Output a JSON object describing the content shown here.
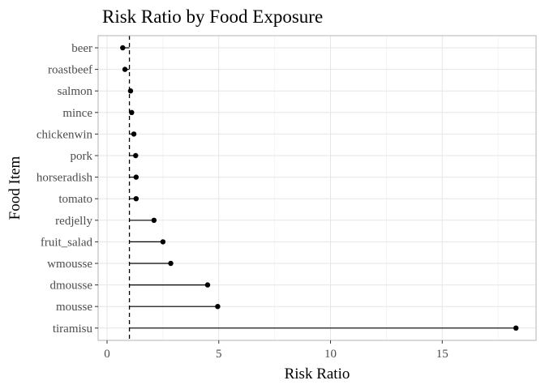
{
  "chart_data": {
    "type": "lollipop",
    "title": "Risk Ratio by Food Exposure",
    "xlabel": "Risk Ratio",
    "ylabel": "Food Item",
    "xlim": [
      -0.4,
      19.2
    ],
    "xticks": [
      0,
      5,
      10,
      15
    ],
    "reference_line": 1,
    "grid": true,
    "categories": [
      "beer",
      "roastbeef",
      "salmon",
      "mince",
      "chickenwin",
      "pork",
      "horseradish",
      "tomato",
      "redjelly",
      "fruit_salad",
      "wmousse",
      "dmousse",
      "mousse",
      "tiramisu"
    ],
    "values": [
      0.7,
      0.8,
      1.05,
      1.1,
      1.2,
      1.28,
      1.3,
      1.3,
      2.1,
      2.5,
      2.85,
      4.5,
      4.95,
      18.3
    ]
  }
}
